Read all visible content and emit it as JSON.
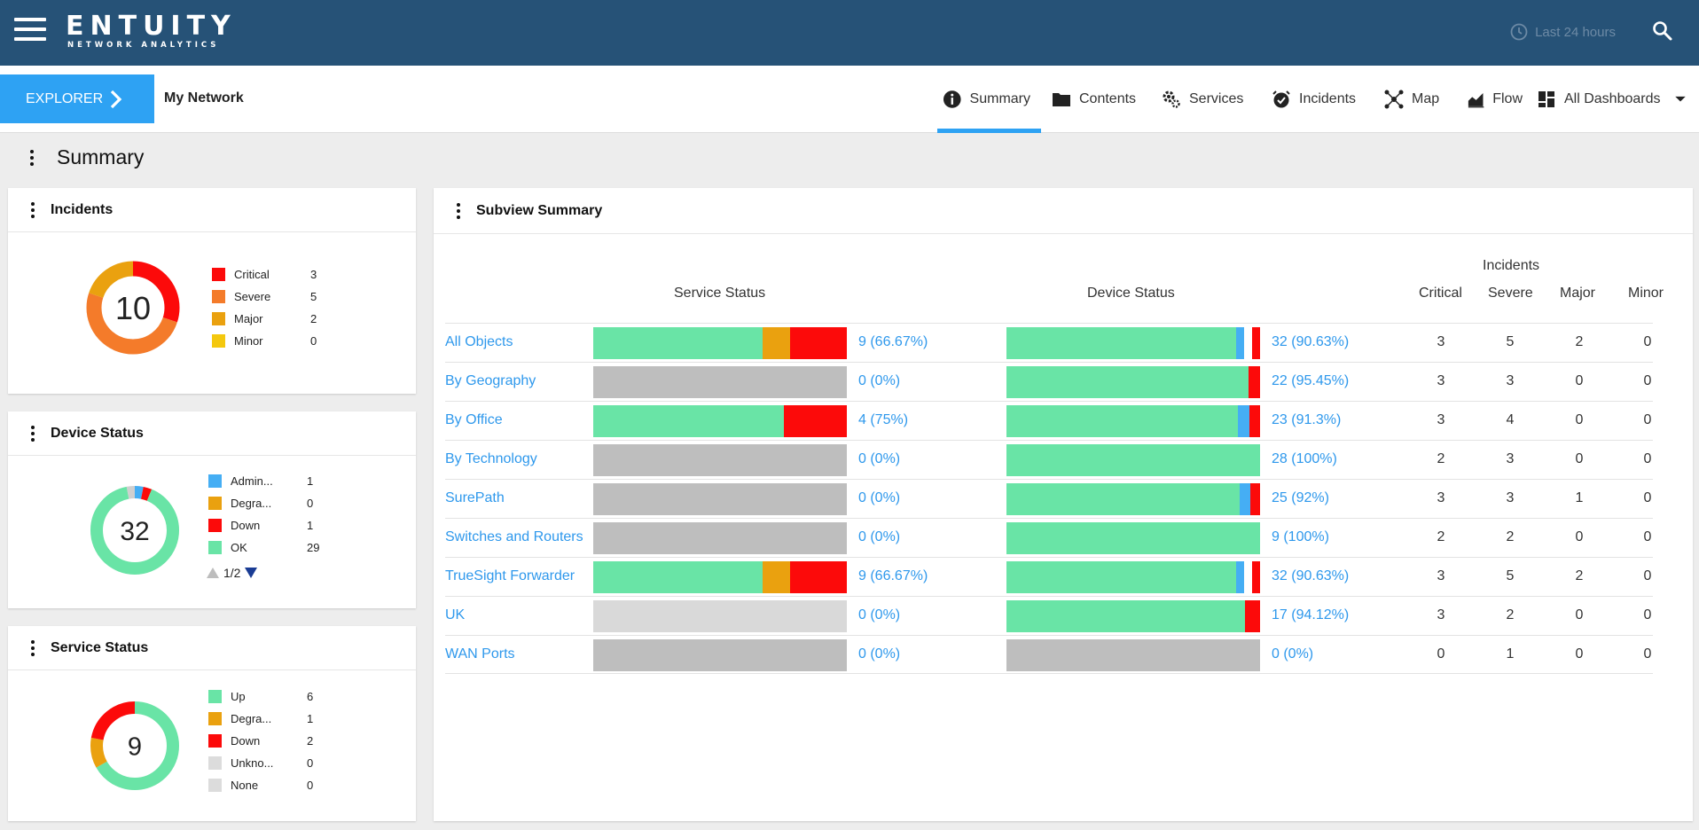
{
  "header": {
    "logo_main": "ENTUITY",
    "logo_sub": "NETWORK ANALYTICS",
    "time_range": "Last 24 hours"
  },
  "nav": {
    "explorer_label": "EXPLORER",
    "network_name": "My Network",
    "tabs": [
      {
        "label": "Summary",
        "icon": "info-icon"
      },
      {
        "label": "Contents",
        "icon": "folder-icon"
      },
      {
        "label": "Services",
        "icon": "gears-icon"
      },
      {
        "label": "Incidents",
        "icon": "alarm-clock-icon"
      },
      {
        "label": "Map",
        "icon": "network-map-icon"
      },
      {
        "label": "Flow",
        "icon": "area-chart-icon"
      },
      {
        "label": "All Dashboards",
        "icon": "dashboard-grid-icon"
      }
    ]
  },
  "page": {
    "title": "Summary"
  },
  "incidents_card": {
    "title": "Incidents",
    "total": "10",
    "legend": [
      {
        "label": "Critical",
        "value": "3",
        "color": "#fc0a0a"
      },
      {
        "label": "Severe",
        "value": "5",
        "color": "#f47b2a"
      },
      {
        "label": "Major",
        "value": "2",
        "color": "#eaa10f"
      },
      {
        "label": "Minor",
        "value": "0",
        "color": "#f4c80e"
      }
    ]
  },
  "device_card": {
    "title": "Device Status",
    "total": "32",
    "legend": [
      {
        "label": "Admin...",
        "value": "1",
        "color": "#45aef4"
      },
      {
        "label": "Degra...",
        "value": "0",
        "color": "#eaa10f"
      },
      {
        "label": "Down",
        "value": "1",
        "color": "#fc0a0a"
      },
      {
        "label": "OK",
        "value": "29",
        "color": "#69e4a6"
      }
    ],
    "pager": "1/2",
    "donut_extra": [
      {
        "label": "gray",
        "value": 1,
        "color": "#cfcfcf"
      }
    ]
  },
  "service_card": {
    "title": "Service Status",
    "total": "9",
    "legend": [
      {
        "label": "Up",
        "value": "6",
        "color": "#69e4a6"
      },
      {
        "label": "Degra...",
        "value": "1",
        "color": "#eaa10f"
      },
      {
        "label": "Down",
        "value": "2",
        "color": "#fc0a0a"
      },
      {
        "label": "Unkno...",
        "value": "0",
        "color": "#dcdcdc"
      },
      {
        "label": "None",
        "value": "0",
        "color": "#dcdcdc"
      }
    ]
  },
  "subview": {
    "title": "Subview Summary",
    "headers": {
      "service_status": "Service Status",
      "device_status": "Device Status",
      "incidents": "Incidents",
      "critical": "Critical",
      "severe": "Severe",
      "major": "Major",
      "minor": "Minor"
    },
    "colors": {
      "ok": "#69e4a6",
      "degraded": "#eaa10f",
      "down": "#fc0a0a",
      "admin": "#45aef4",
      "none": "#bebebe",
      "none_light": "#d9d9d9",
      "white": "#ffffff"
    },
    "rows": [
      {
        "name": "All Objects",
        "service": {
          "ok": 6,
          "degraded": 1,
          "down": 2,
          "none": 0
        },
        "service_text": "9 (66.67%)",
        "device": {
          "ok": 29,
          "admin": 1,
          "white": 1,
          "down": 1,
          "none": 0
        },
        "device_text": "32 (90.63%)",
        "critical": "3",
        "severe": "5",
        "major": "2",
        "minor": "0"
      },
      {
        "name": "By Geography",
        "service": {
          "ok": 0,
          "degraded": 0,
          "down": 0,
          "none": 1
        },
        "service_text": "0 (0%)",
        "device": {
          "ok": 21,
          "admin": 0,
          "white": 0,
          "down": 1,
          "none": 0
        },
        "device_text": "22 (95.45%)",
        "critical": "3",
        "severe": "3",
        "major": "0",
        "minor": "0"
      },
      {
        "name": "By Office",
        "service": {
          "ok": 3,
          "degraded": 0,
          "down": 1,
          "none": 0
        },
        "service_text": "4 (75%)",
        "device": {
          "ok": 21,
          "admin": 1,
          "white": 0,
          "down": 1,
          "none": 0
        },
        "device_text": "23 (91.3%)",
        "critical": "3",
        "severe": "4",
        "major": "0",
        "minor": "0"
      },
      {
        "name": "By Technology",
        "service": {
          "ok": 0,
          "degraded": 0,
          "down": 0,
          "none": 1
        },
        "service_text": "0 (0%)",
        "device": {
          "ok": 28,
          "admin": 0,
          "white": 0,
          "down": 0,
          "none": 0
        },
        "device_text": "28 (100%)",
        "critical": "2",
        "severe": "3",
        "major": "0",
        "minor": "0"
      },
      {
        "name": "SurePath",
        "service": {
          "ok": 0,
          "degraded": 0,
          "down": 0,
          "none": 1
        },
        "service_text": "0 (0%)",
        "device": {
          "ok": 23,
          "admin": 1,
          "white": 0,
          "down": 1,
          "none": 0
        },
        "device_text": "25 (92%)",
        "critical": "3",
        "severe": "3",
        "major": "1",
        "minor": "0"
      },
      {
        "name": "Switches and Routers",
        "service": {
          "ok": 0,
          "degraded": 0,
          "down": 0,
          "none": 1
        },
        "service_text": "0 (0%)",
        "device": {
          "ok": 9,
          "admin": 0,
          "white": 0,
          "down": 0,
          "none": 0
        },
        "device_text": "9 (100%)",
        "critical": "2",
        "severe": "2",
        "major": "0",
        "minor": "0"
      },
      {
        "name": "TrueSight Forwarder",
        "service": {
          "ok": 6,
          "degraded": 1,
          "down": 2,
          "none": 0
        },
        "service_text": "9 (66.67%)",
        "device": {
          "ok": 29,
          "admin": 1,
          "white": 1,
          "down": 1,
          "none": 0
        },
        "device_text": "32 (90.63%)",
        "critical": "3",
        "severe": "5",
        "major": "2",
        "minor": "0"
      },
      {
        "name": "UK",
        "service": {
          "ok": 0,
          "degraded": 0,
          "down": 0,
          "none": 1,
          "light": true
        },
        "service_text": "0 (0%)",
        "device": {
          "ok": 16,
          "admin": 0,
          "white": 0,
          "down": 1,
          "none": 0
        },
        "device_text": "17 (94.12%)",
        "critical": "3",
        "severe": "2",
        "major": "0",
        "minor": "0"
      },
      {
        "name": "WAN Ports",
        "service": {
          "ok": 0,
          "degraded": 0,
          "down": 0,
          "none": 1
        },
        "service_text": "0 (0%)",
        "device": {
          "ok": 0,
          "admin": 0,
          "white": 0,
          "down": 0,
          "none": 1
        },
        "device_text": "0 (0%)",
        "critical": "0",
        "severe": "1",
        "major": "0",
        "minor": "0"
      }
    ]
  }
}
